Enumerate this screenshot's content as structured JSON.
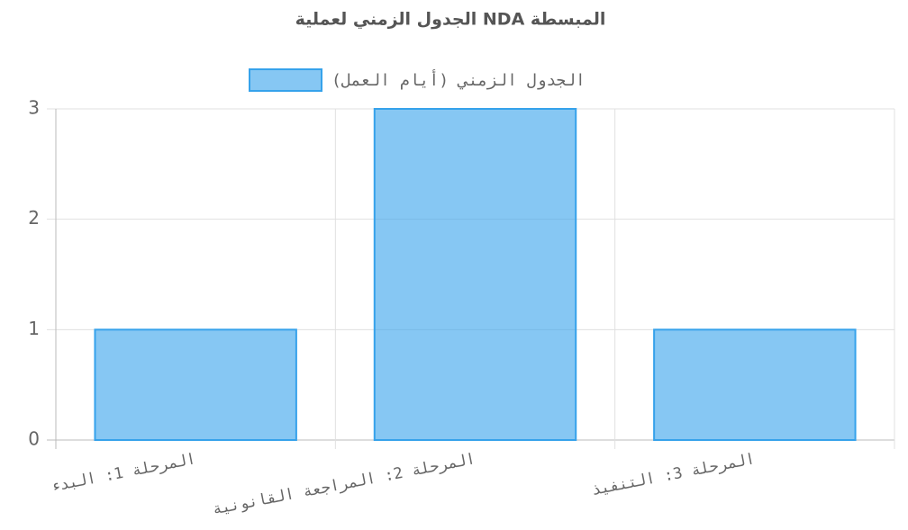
{
  "chart_data": {
    "type": "bar",
    "title": "الجدول الزمني لعملية NDA المبسطة",
    "categories": [
      "المرحلة 1: البدء",
      "المرحلة 2: المراجعة القانونية",
      "المرحلة 3: التنفيذ"
    ],
    "series": [
      {
        "name": "الجدول الزمني (أيام العمل)",
        "color": "#36a2eb",
        "values": [
          1,
          3,
          1
        ]
      }
    ],
    "ylim": [
      0,
      3
    ],
    "yticks": [
      0,
      1,
      2,
      3
    ],
    "grid": true,
    "legend": "top"
  }
}
